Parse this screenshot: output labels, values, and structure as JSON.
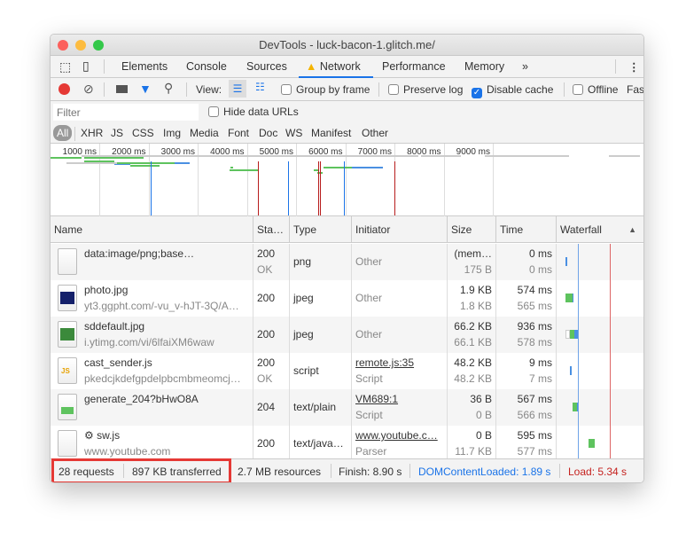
{
  "window": {
    "title": "DevTools - luck-bacon-1.glitch.me/"
  },
  "tabs": [
    "Elements",
    "Console",
    "Sources",
    "Network",
    "Performance",
    "Memory"
  ],
  "tabs_more": "»",
  "toolbar": {
    "view_label": "View:",
    "group_by_frame": "Group by frame",
    "preserve_log": "Preserve log",
    "disable_cache": "Disable cache",
    "offline": "Offline",
    "throttle": "Fas",
    "group_checked": false,
    "preserve_checked": false,
    "disable_cache_checked": true,
    "offline_checked": false
  },
  "filter": {
    "placeholder": "Filter",
    "hide_data_urls": "Hide data URLs"
  },
  "types": [
    "All",
    "XHR",
    "JS",
    "CSS",
    "Img",
    "Media",
    "Font",
    "Doc",
    "WS",
    "Manifest",
    "Other"
  ],
  "overview_ticks": [
    "1000 ms",
    "2000 ms",
    "3000 ms",
    "4000 ms",
    "5000 ms",
    "6000 ms",
    "7000 ms",
    "8000 ms",
    "9000 ms"
  ],
  "columns": [
    "Name",
    "Sta…",
    "Type",
    "Initiator",
    "Size",
    "Time",
    "Waterfall"
  ],
  "rows": [
    {
      "name": "data:image/png;base…",
      "sub": "",
      "status": "200",
      "status_text": "OK",
      "type": "png",
      "initiator": "Other",
      "initiator_sub": "",
      "initiator_link": false,
      "size": "(mem…",
      "size_sub": "175 B",
      "time": "0 ms",
      "time_sub": "0 ms",
      "icon": "blank-file-icon"
    },
    {
      "name": "photo.jpg",
      "sub": "yt3.ggpht.com/-vu_v-hJT-3Q/A…",
      "status": "200",
      "status_text": "",
      "type": "jpeg",
      "initiator": "Other",
      "initiator_sub": "",
      "initiator_link": false,
      "size": "1.9 KB",
      "size_sub": "1.8 KB",
      "time": "574 ms",
      "time_sub": "565 ms",
      "icon": "image-thumbnail-icon"
    },
    {
      "name": "sddefault.jpg",
      "sub": "i.ytimg.com/vi/6lfaiXM6waw",
      "status": "200",
      "status_text": "",
      "type": "jpeg",
      "initiator": "Other",
      "initiator_sub": "",
      "initiator_link": false,
      "size": "66.2 KB",
      "size_sub": "66.1 KB",
      "time": "936 ms",
      "time_sub": "578 ms",
      "icon": "image-thumbnail-icon"
    },
    {
      "name": "cast_sender.js",
      "sub": "pkedcjkdefgpdelpbcmbmeomcj…",
      "status": "200",
      "status_text": "OK",
      "type": "script",
      "initiator": "remote.js:35",
      "initiator_sub": "Script",
      "initiator_link": true,
      "size": "48.2 KB",
      "size_sub": "48.2 KB",
      "time": "9 ms",
      "time_sub": "7 ms",
      "icon": "js-file-icon"
    },
    {
      "name": "generate_204?bHwO8A",
      "sub": "",
      "status": "204",
      "status_text": "",
      "type": "text/plain",
      "initiator": "VM689:1",
      "initiator_sub": "Script",
      "initiator_link": true,
      "size": "36 B",
      "size_sub": "0 B",
      "time": "567 ms",
      "time_sub": "566 ms",
      "icon": "image-file-icon"
    },
    {
      "name": "sw.js",
      "sub": "www.youtube.com",
      "status": "200",
      "status_text": "",
      "type": "text/java…",
      "initiator": "www.youtube.c…",
      "initiator_sub": "Parser",
      "initiator_link": true,
      "size": "0 B",
      "size_sub": "11.7 KB",
      "time": "595 ms",
      "time_sub": "577 ms",
      "icon": "blank-file-icon"
    }
  ],
  "status": {
    "requests": "28 requests",
    "transferred": "897 KB transferred",
    "resources": "2.7 MB resources",
    "finish": "Finish: 8.90 s",
    "dcl": "DOMContentLoaded: 1.89 s",
    "load": "Load: 5.34 s"
  },
  "colors": {
    "accent": "#1a73e8",
    "dcl": "#1a73e8",
    "load": "#c5221f",
    "highlight": "#e53935",
    "waiting": "#5ec35e",
    "download": "#4a90e2"
  }
}
